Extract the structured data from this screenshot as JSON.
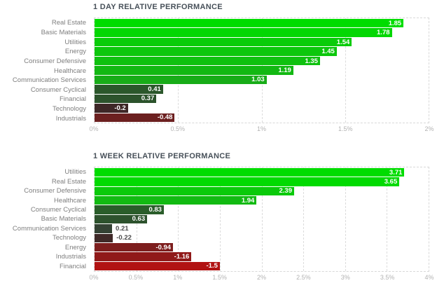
{
  "palette": {
    "background": "#FFFFFF",
    "title_color": "#475059",
    "category_label_color": "#7E7E7E",
    "axis_label_color": "#B3B3B3",
    "grid_color": "#DCDCDC",
    "value_label_inside_color": "#FFFFFF",
    "value_label_outside_color": "#4A4A4A"
  },
  "chart_data": [
    {
      "type": "bar",
      "orientation": "horizontal",
      "title": "1 DAY RELATIVE PERFORMANCE",
      "xlabel": "",
      "ylabel": "",
      "xlim": [
        0,
        2
      ],
      "x_ticks": [
        "0%",
        "0.5%",
        "1%",
        "1.5%",
        "2%"
      ],
      "grid": "dashed-vertical",
      "legend": "none",
      "categories": [
        "Real Estate",
        "Basic Materials",
        "Utilities",
        "Energy",
        "Consumer Defensive",
        "Healthcare",
        "Communication Services",
        "Consumer Cyclical",
        "Financial",
        "Technology",
        "Industrials"
      ],
      "values": [
        1.85,
        1.78,
        1.54,
        1.45,
        1.35,
        1.19,
        1.03,
        0.41,
        0.37,
        -0.2,
        -0.48
      ],
      "value_labels": [
        "1.85",
        "1.78",
        "1.54",
        "1.45",
        "1.35",
        "1.19",
        "1.03",
        "0.41",
        "0.37",
        "-0.2",
        "-0.48"
      ],
      "bar_colors": [
        "#00DC00",
        "#03D703",
        "#09CC09",
        "#0CC70C",
        "#0FC10F",
        "#13B813",
        "#18AC18",
        "#2B572B",
        "#2C532C",
        "#3E2727",
        "#6C2020"
      ]
    },
    {
      "type": "bar",
      "orientation": "horizontal",
      "title": "1 WEEK RELATIVE PERFORMANCE",
      "xlabel": "",
      "ylabel": "",
      "xlim": [
        0,
        4
      ],
      "x_ticks": [
        "0%",
        "0.5%",
        "1%",
        "1.5%",
        "2%",
        "2.5%",
        "3%",
        "3.5%",
        "4%"
      ],
      "grid": "dashed-vertical",
      "legend": "none",
      "categories": [
        "Utilities",
        "Real Estate",
        "Consumer Defensive",
        "Healthcare",
        "Consumer Cyclical",
        "Basic Materials",
        "Communication Services",
        "Technology",
        "Energy",
        "Industrials",
        "Financial"
      ],
      "values": [
        3.71,
        3.65,
        2.39,
        1.94,
        0.83,
        0.63,
        0.21,
        -0.22,
        -0.94,
        -1.16,
        -1.5
      ],
      "value_labels": [
        "3.71",
        "3.65",
        "2.39",
        "1.94",
        "0.83",
        "0.63",
        "0.21",
        "-0.22",
        "-0.94",
        "-1.16",
        "-1.5"
      ],
      "bar_colors": [
        "#00DC00",
        "#01DA01",
        "#0ACA0A",
        "#12BA12",
        "#2A5D2A",
        "#2D522D",
        "#344234",
        "#3F2928",
        "#7D1E1E",
        "#901919",
        "#B11212"
      ]
    }
  ],
  "layout_note": ""
}
